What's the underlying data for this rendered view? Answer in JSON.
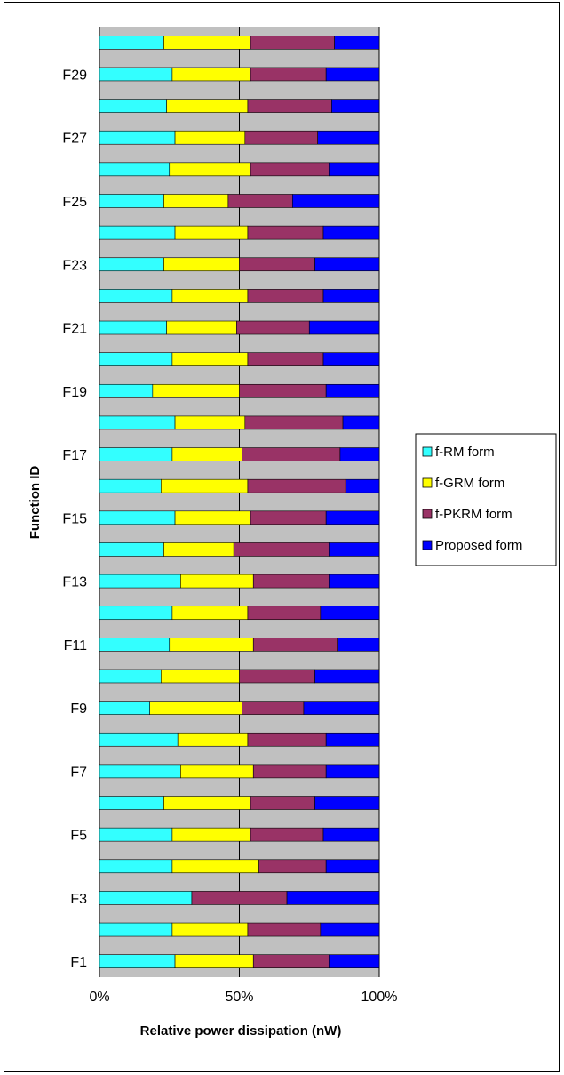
{
  "chart_data": {
    "type": "bar",
    "stacked": "percent",
    "orientation": "horizontal",
    "xlabel": "Relative power dissipation (nW)",
    "ylabel": "Function ID",
    "xlim": [
      0,
      100
    ],
    "x_ticks": [
      "0%",
      "50%",
      "100%"
    ],
    "grid": true,
    "legend_position": "right",
    "categories": [
      "F1",
      "F2",
      "F3",
      "F4",
      "F5",
      "F6",
      "F7",
      "F8",
      "F9",
      "F10",
      "F11",
      "F12",
      "F13",
      "F14",
      "F15",
      "F16",
      "F17",
      "F18",
      "F19",
      "F20",
      "F21",
      "F22",
      "F23",
      "F24",
      "F25",
      "F26",
      "F27",
      "F28",
      "F29",
      "F30"
    ],
    "category_labels_shown": [
      "F1",
      "",
      "F3",
      "",
      "F5",
      "",
      "F7",
      "",
      "F9",
      "",
      "F11",
      "",
      "F13",
      "",
      "F15",
      "",
      "F17",
      "",
      "F19",
      "",
      "F21",
      "",
      "F23",
      "",
      "F25",
      "",
      "F27",
      "",
      "F29",
      ""
    ],
    "series": [
      {
        "name": "f-RM form",
        "color": "#33FFFF",
        "values": [
          27,
          26,
          33,
          26,
          26,
          23,
          29,
          28,
          18,
          22,
          25,
          26,
          29,
          23,
          27,
          22,
          26,
          27,
          19,
          26,
          24,
          26,
          23,
          27,
          23,
          25,
          27,
          24,
          26,
          23
        ]
      },
      {
        "name": "f-GRM form",
        "color": "#FFFF00",
        "values": [
          28,
          27,
          0,
          31,
          28,
          31,
          26,
          25,
          33,
          28,
          30,
          27,
          26,
          25,
          27,
          31,
          25,
          25,
          31,
          27,
          25,
          27,
          27,
          26,
          23,
          29,
          25,
          29,
          28,
          31
        ]
      },
      {
        "name": "f-PKRM form",
        "color": "#993366",
        "values": [
          27,
          26,
          34,
          24,
          26,
          23,
          26,
          28,
          22,
          27,
          30,
          26,
          27,
          34,
          27,
          35,
          35,
          35,
          31,
          27,
          26,
          27,
          27,
          27,
          23,
          28,
          26,
          30,
          27,
          30
        ]
      },
      {
        "name": "Proposed form",
        "color": "#0000FF",
        "values": [
          18,
          21,
          33,
          19,
          20,
          23,
          19,
          19,
          27,
          23,
          15,
          21,
          18,
          18,
          19,
          12,
          14,
          13,
          19,
          20,
          25,
          20,
          23,
          20,
          31,
          18,
          22,
          17,
          19,
          16
        ]
      }
    ]
  },
  "colors": {
    "plot_background": "#C0C0C0",
    "gridline": "#000000",
    "frame": "#000000"
  }
}
